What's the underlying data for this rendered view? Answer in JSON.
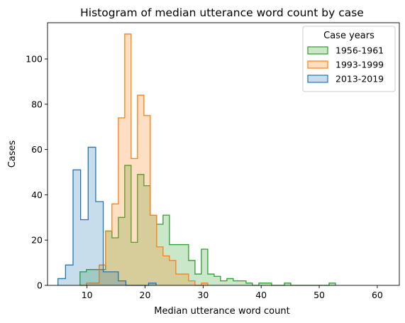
{
  "chart_data": {
    "type": "histogram",
    "title": "Histogram of median utterance word count by case",
    "xlabel": "Median utterance word count",
    "ylabel": "Cases",
    "xlim": [
      3.2,
      63.8
    ],
    "ylim": [
      0,
      116
    ],
    "xticks": [
      10,
      20,
      30,
      40,
      50,
      60
    ],
    "yticks": [
      0,
      20,
      40,
      60,
      80,
      100
    ],
    "grid": false,
    "legend_title": "Case years",
    "legend_position": "top-right",
    "series": [
      {
        "name": "1956-1961",
        "color": "#2ca02c",
        "x0": 8.8,
        "binwidth": 1.1,
        "values": [
          6,
          7,
          7,
          7,
          24,
          21,
          30,
          53,
          19,
          49,
          44,
          31,
          27,
          31,
          18,
          18,
          18,
          11,
          5,
          16,
          5,
          4,
          2,
          3,
          2,
          2,
          1,
          0,
          1,
          1,
          0,
          0,
          1,
          0,
          0,
          0,
          0,
          0,
          0,
          1
        ]
      },
      {
        "name": "1993-1999",
        "color": "#ff7f0e",
        "x0": 8.8,
        "binwidth": 1.1,
        "values": [
          0,
          1,
          1,
          9,
          24,
          36,
          74,
          111,
          56,
          84,
          75,
          31,
          17,
          13,
          11,
          5,
          5,
          2,
          0,
          1
        ]
      },
      {
        "name": "2013-2019",
        "color": "#1f77b4",
        "x0": 5.0,
        "binwidth": 1.3,
        "values": [
          3,
          9,
          51,
          29,
          61,
          37,
          6,
          6,
          2,
          0,
          0,
          0,
          1
        ]
      }
    ]
  }
}
